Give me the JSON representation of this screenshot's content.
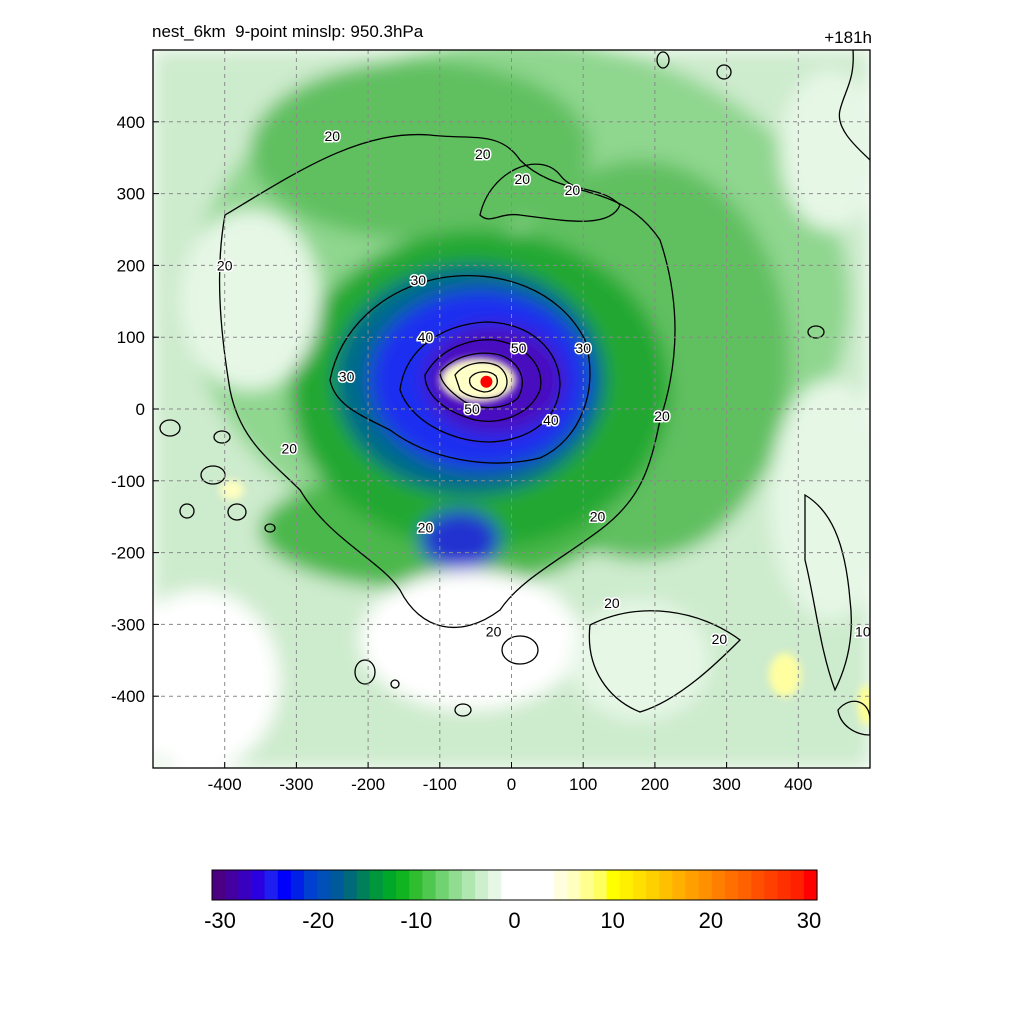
{
  "chart_data": {
    "type": "heatmap",
    "title": "nest_6km  9-point minslp: 950.3hPa",
    "forecast_hour": "+181h",
    "xlim": [
      -500,
      500
    ],
    "ylim": [
      -500,
      500
    ],
    "x_ticks": [
      -400,
      -300,
      -200,
      -100,
      0,
      100,
      200,
      300,
      400
    ],
    "y_ticks": [
      -400,
      -300,
      -200,
      -100,
      0,
      100,
      200,
      300,
      400
    ],
    "grid": "dashed",
    "storm_center": {
      "x": -35,
      "y": 38
    },
    "contour_labels": [
      {
        "text": "20",
        "x": -250,
        "y": 380
      },
      {
        "text": "20",
        "x": -40,
        "y": 355
      },
      {
        "text": "20",
        "x": 15,
        "y": 320
      },
      {
        "text": "20",
        "x": 85,
        "y": 305
      },
      {
        "text": "20",
        "x": -400,
        "y": 200
      },
      {
        "text": "20",
        "x": -310,
        "y": -55
      },
      {
        "text": "20",
        "x": 210,
        "y": -10
      },
      {
        "text": "20",
        "x": 120,
        "y": -150
      },
      {
        "text": "20",
        "x": -120,
        "y": -165
      },
      {
        "text": "20",
        "x": 140,
        "y": -270
      },
      {
        "text": "20",
        "x": 290,
        "y": -320
      },
      {
        "text": "20",
        "x": -25,
        "y": -310
      },
      {
        "text": "10",
        "x": 490,
        "y": -310
      },
      {
        "text": "30",
        "x": -130,
        "y": 180
      },
      {
        "text": "30",
        "x": -230,
        "y": 45
      },
      {
        "text": "30",
        "x": 100,
        "y": 85
      },
      {
        "text": "40",
        "x": -120,
        "y": 100
      },
      {
        "text": "40",
        "x": 55,
        "y": -15
      },
      {
        "text": "50",
        "x": -55,
        "y": 0
      },
      {
        "text": "50",
        "x": 10,
        "y": 85
      }
    ],
    "colorbar": {
      "min": -30,
      "max": 30,
      "tick_labels": [
        "-30",
        "-20",
        "-10",
        "0",
        "10",
        "20",
        "30"
      ],
      "colors": [
        "#4b0082",
        "#4400a0",
        "#3a00c0",
        "#2a00e0",
        "#1e1ef0",
        "#0000ff",
        "#0020e8",
        "#0040d0",
        "#0050b8",
        "#005a9a",
        "#006a7a",
        "#00805a",
        "#00963c",
        "#00a82a",
        "#10b420",
        "#30be30",
        "#50c850",
        "#70d270",
        "#90dc90",
        "#b0e6b0",
        "#cdefcd",
        "#e6f7e6",
        "#ffffff",
        "#ffffff",
        "#ffffff",
        "#ffffff",
        "#ffffe0",
        "#ffffc0",
        "#ffff90",
        "#ffff60",
        "#ffff00",
        "#fff000",
        "#ffe000",
        "#ffd000",
        "#ffc000",
        "#ffb000",
        "#ffa000",
        "#ff9000",
        "#ff8000",
        "#ff7000",
        "#ff6000",
        "#ff5000",
        "#ff4000",
        "#ff3000",
        "#ff2000",
        "#ff0000"
      ]
    }
  }
}
